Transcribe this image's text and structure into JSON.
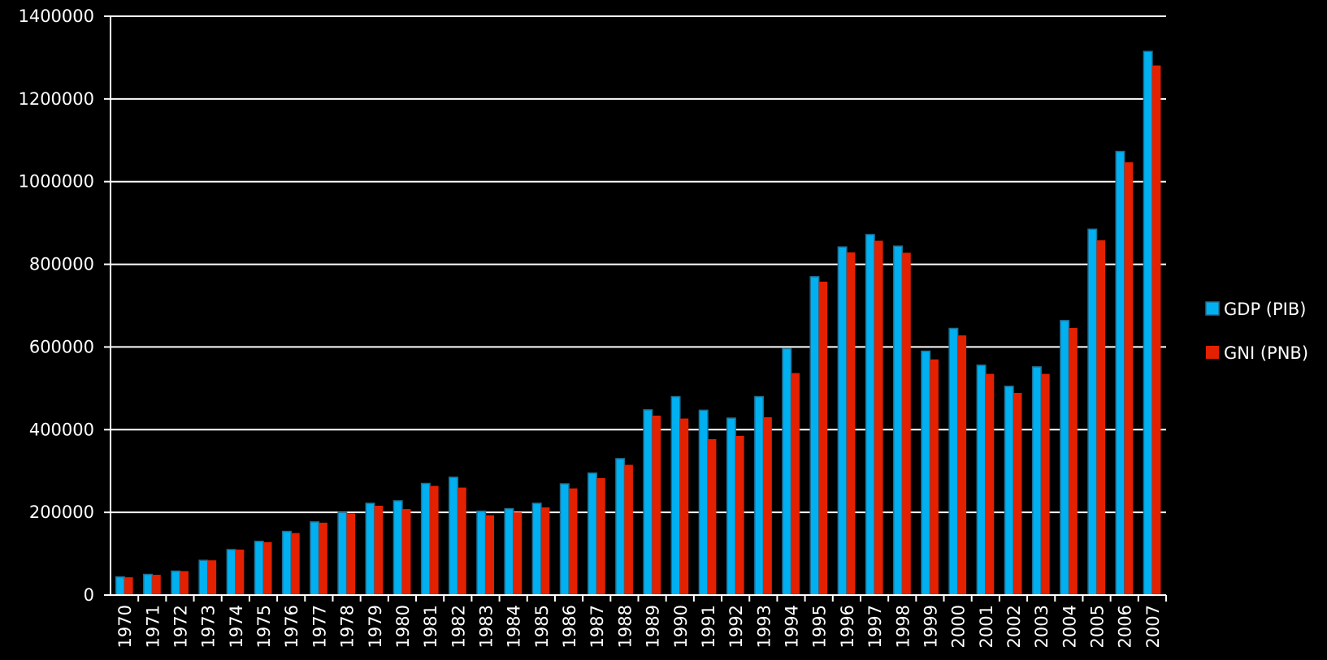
{
  "chart_data": {
    "type": "bar",
    "title": "",
    "xlabel": "",
    "ylabel": "",
    "ylim": [
      0,
      1400000
    ],
    "yticks": [
      "0",
      "200000",
      "400000",
      "600000",
      "800000",
      "1000000",
      "1200000",
      "1400000"
    ],
    "grid": true,
    "legend_position": "right",
    "categories": [
      "1970",
      "1971",
      "1972",
      "1973",
      "1974",
      "1975",
      "1976",
      "1977",
      "1978",
      "1979",
      "1980",
      "1981",
      "1982",
      "1983",
      "1984",
      "1985",
      "1986",
      "1987",
      "1988",
      "1989",
      "1990",
      "1991",
      "1992",
      "1993",
      "1994",
      "1995",
      "1996",
      "1997",
      "1998",
      "1999",
      "2000",
      "2001",
      "2002",
      "2003",
      "2004",
      "2005",
      "2006",
      "2007"
    ],
    "series": [
      {
        "name": "GDP (PIB)",
        "color": "#00B0F0",
        "values": [
          44000,
          50000,
          58000,
          84000,
          110000,
          130000,
          154000,
          177000,
          200000,
          222000,
          228000,
          270000,
          285000,
          203000,
          209000,
          222000,
          269000,
          295000,
          330000,
          448000,
          480000,
          447000,
          428000,
          480000,
          596000,
          770000,
          842000,
          872000,
          844000,
          590000,
          645000,
          556000,
          505000,
          552000,
          664000,
          885000,
          1073000,
          1315000
        ]
      },
      {
        "name": "GNI (PNB)",
        "color": "#E32000",
        "values": [
          43000,
          49000,
          58000,
          84000,
          110000,
          128000,
          150000,
          175000,
          197000,
          216000,
          208000,
          264000,
          260000,
          193000,
          200000,
          212000,
          258000,
          283000,
          315000,
          434000,
          427000,
          377000,
          385000,
          430000,
          537000,
          758000,
          829000,
          857000,
          828000,
          570000,
          628000,
          535000,
          489000,
          535000,
          646000,
          858000,
          1047000,
          1281000
        ]
      }
    ]
  }
}
